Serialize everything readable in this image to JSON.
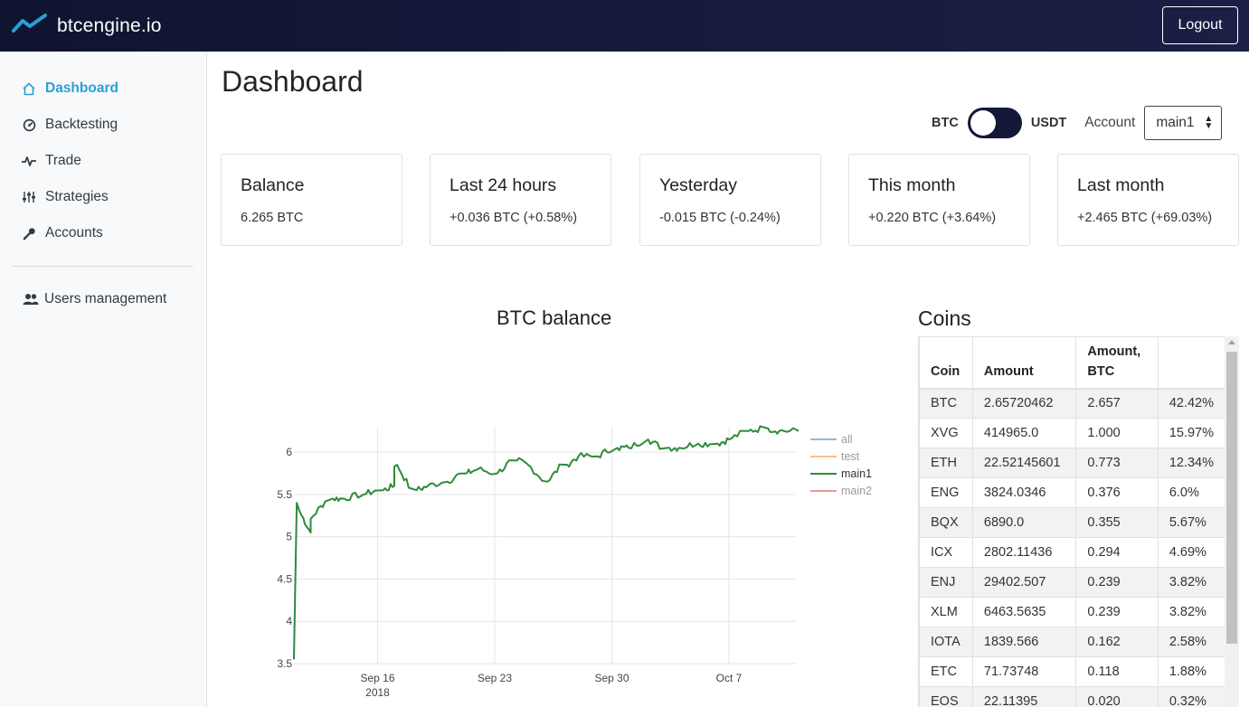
{
  "brand": {
    "name": "btcengine.io"
  },
  "header": {
    "logout_label": "Logout"
  },
  "sidebar": {
    "items": [
      {
        "label": "Dashboard",
        "icon": "home-icon",
        "active": true
      },
      {
        "label": "Backtesting",
        "icon": "speedometer-icon"
      },
      {
        "label": "Trade",
        "icon": "pulse-icon"
      },
      {
        "label": "Strategies",
        "icon": "sliders-icon"
      },
      {
        "label": "Accounts",
        "icon": "key-icon"
      },
      {
        "label": "Users management",
        "icon": "users-icon"
      }
    ]
  },
  "main": {
    "title": "Dashboard",
    "currency_toggle": {
      "left": "BTC",
      "right": "USDT",
      "selected": "BTC"
    },
    "account": {
      "label": "Account",
      "selected": "main1"
    },
    "cards": [
      {
        "title": "Balance",
        "value": "6.265 BTC"
      },
      {
        "title": "Last 24 hours",
        "value": "+0.036 BTC (+0.58%)"
      },
      {
        "title": "Yesterday",
        "value": "-0.015 BTC (-0.24%)"
      },
      {
        "title": "This month",
        "value": "+0.220 BTC (+3.64%)"
      },
      {
        "title": "Last month",
        "value": "+2.465 BTC (+69.03%)"
      }
    ]
  },
  "chart_data": {
    "type": "line",
    "title": "BTC balance",
    "x_ticks": [
      "Sep 16\n2018",
      "Sep 23",
      "Sep 30",
      "Oct 7"
    ],
    "y_ticks": [
      "3.5",
      "4",
      "4.5",
      "5",
      "5.5",
      "6"
    ],
    "ylim": [
      3.5,
      6.3
    ],
    "xlim": [
      "2018-09-11",
      "2018-10-11"
    ],
    "grid": true,
    "legend": {
      "placement": "top-right",
      "entries": [
        {
          "name": "all",
          "color": "#8fbcd3",
          "muted": true
        },
        {
          "name": "test",
          "color": "#f5c08f",
          "muted": true
        },
        {
          "name": "main1",
          "color": "#2e8b3a",
          "muted": false
        },
        {
          "name": "main2",
          "color": "#e79a9a",
          "muted": true
        }
      ]
    },
    "series": [
      {
        "name": "main1",
        "color": "#2e8b3a",
        "points": [
          [
            "2018-09-11",
            3.55
          ],
          [
            "2018-09-11",
            5.4
          ],
          [
            "2018-09-11",
            5.3
          ],
          [
            "2018-09-12",
            5.05
          ],
          [
            "2018-09-12",
            5.25
          ],
          [
            "2018-09-13",
            5.45
          ],
          [
            "2018-09-14",
            5.45
          ],
          [
            "2018-09-15",
            5.5
          ],
          [
            "2018-09-16",
            5.55
          ],
          [
            "2018-09-17",
            5.6
          ],
          [
            "2018-09-17",
            5.85
          ],
          [
            "2018-09-18",
            5.55
          ],
          [
            "2018-09-19",
            5.6
          ],
          [
            "2018-09-20",
            5.65
          ],
          [
            "2018-09-21",
            5.75
          ],
          [
            "2018-09-22",
            5.8
          ],
          [
            "2018-09-23",
            5.75
          ],
          [
            "2018-09-24",
            5.9
          ],
          [
            "2018-09-25",
            5.85
          ],
          [
            "2018-09-26",
            5.65
          ],
          [
            "2018-09-27",
            5.85
          ],
          [
            "2018-09-28",
            5.95
          ],
          [
            "2018-09-29",
            5.95
          ],
          [
            "2018-09-30",
            6.05
          ],
          [
            "2018-10-01",
            6.05
          ],
          [
            "2018-10-02",
            6.15
          ],
          [
            "2018-10-03",
            6.05
          ],
          [
            "2018-10-04",
            6.05
          ],
          [
            "2018-10-05",
            6.1
          ],
          [
            "2018-10-06",
            6.1
          ],
          [
            "2018-10-07",
            6.15
          ],
          [
            "2018-10-08",
            6.25
          ],
          [
            "2018-10-09",
            6.28
          ],
          [
            "2018-10-10",
            6.25
          ],
          [
            "2018-10-11",
            6.25
          ]
        ]
      }
    ]
  },
  "coins": {
    "title": "Coins",
    "headers": [
      "Coin",
      "Amount",
      "Amount,\nBTC",
      ""
    ],
    "rows": [
      [
        "BTC",
        "2.65720462",
        "2.657",
        "42.42%"
      ],
      [
        "XVG",
        "414965.0",
        "1.000",
        "15.97%"
      ],
      [
        "ETH",
        "22.52145601",
        "0.773",
        "12.34%"
      ],
      [
        "ENG",
        "3824.0346",
        "0.376",
        "6.0%"
      ],
      [
        "BQX",
        "6890.0",
        "0.355",
        "5.67%"
      ],
      [
        "ICX",
        "2802.11436",
        "0.294",
        "4.69%"
      ],
      [
        "ENJ",
        "29402.507",
        "0.239",
        "3.82%"
      ],
      [
        "XLM",
        "6463.5635",
        "0.239",
        "3.82%"
      ],
      [
        "IOTA",
        "1839.566",
        "0.162",
        "2.58%"
      ],
      [
        "ETC",
        "71.73748",
        "0.118",
        "1.88%"
      ],
      [
        "EOS",
        "22.11395",
        "0.020",
        "0.32%"
      ]
    ]
  }
}
